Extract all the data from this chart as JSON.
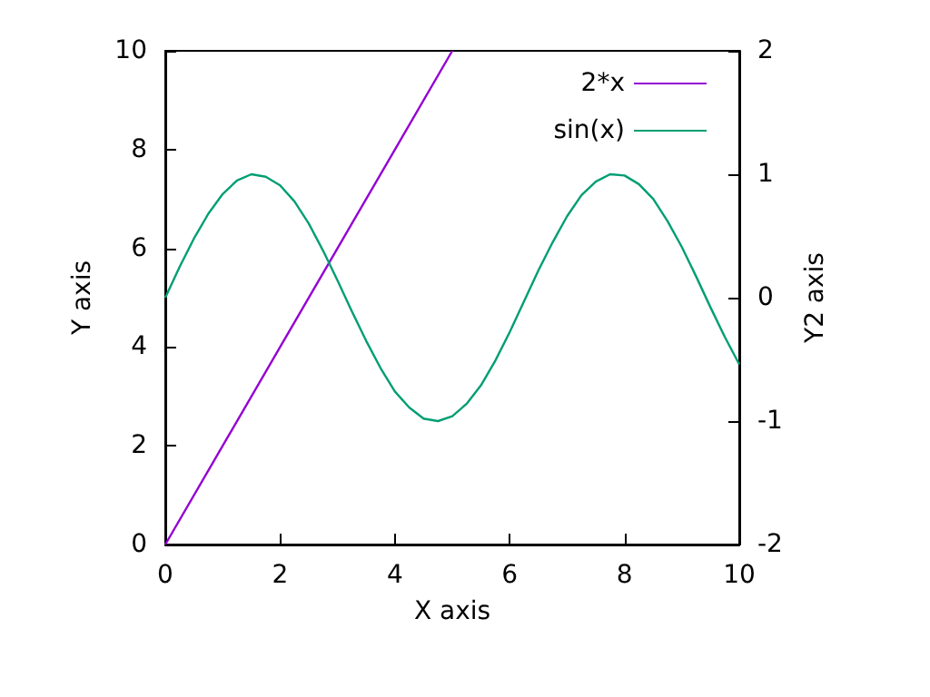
{
  "chart_data": {
    "type": "line",
    "xlabel": "X axis",
    "ylabel": "Y axis",
    "y2label": "Y2 axis",
    "xlim": [
      0,
      10
    ],
    "xticks": [
      0,
      2,
      4,
      6,
      8,
      10
    ],
    "ylim": [
      0,
      10
    ],
    "yticks": [
      0,
      2,
      4,
      6,
      8,
      10
    ],
    "y2lim": [
      -2,
      2
    ],
    "y2ticks": [
      -2,
      -1,
      0,
      1,
      2
    ],
    "grid": false,
    "legend": "top right",
    "marker": "none",
    "line_style": "solid",
    "series": [
      {
        "name": "2*x",
        "color": "#9400d3",
        "x": [
          0,
          1,
          2,
          3,
          4,
          5
        ],
        "values": [
          0,
          2,
          4,
          6,
          8,
          10
        ]
      },
      {
        "name": "sin(x)",
        "color": "#009e73",
        "axis": "y2",
        "x": [
          0,
          0.25,
          0.5,
          0.75,
          1,
          1.25,
          1.5,
          1.75,
          2,
          2.25,
          2.5,
          2.75,
          3,
          3.25,
          3.5,
          3.75,
          4,
          4.25,
          4.5,
          4.75,
          5,
          5.25,
          5.5,
          5.75,
          6,
          6.25,
          6.5,
          6.75,
          7,
          7.25,
          7.5,
          7.75,
          8,
          8.25,
          8.5,
          8.75,
          9,
          9.25,
          9.5,
          9.75,
          10
        ],
        "values": [
          0,
          0.25,
          0.48,
          0.68,
          0.84,
          0.95,
          1,
          0.98,
          0.91,
          0.78,
          0.6,
          0.38,
          0.14,
          -0.11,
          -0.35,
          -0.57,
          -0.76,
          -0.89,
          -0.98,
          -1,
          -0.96,
          -0.86,
          -0.71,
          -0.51,
          -0.28,
          -0.03,
          0.22,
          0.45,
          0.66,
          0.83,
          0.94,
          1,
          0.99,
          0.92,
          0.8,
          0.62,
          0.41,
          0.17,
          -0.08,
          -0.32,
          -0.54
        ]
      }
    ]
  }
}
